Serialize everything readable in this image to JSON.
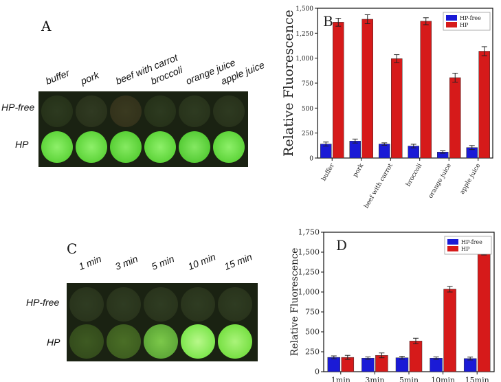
{
  "panels": {
    "a": {
      "letter": "A",
      "columns": [
        "buffer",
        "pork",
        "beef with carrot",
        "broccoli",
        "orange juice",
        "apple juice"
      ],
      "rows": [
        "HP-free",
        "HP"
      ]
    },
    "c": {
      "letter": "C",
      "columns": [
        "1 min",
        "3 min",
        "5 min",
        "10 min",
        "15 min"
      ],
      "rows": [
        "HP-free",
        "HP"
      ]
    }
  },
  "chart_data": [
    {
      "type": "bar",
      "panel_label": "B",
      "categories": [
        "buffer",
        "pork",
        "beef with carrot",
        "broccoli",
        "orange juice",
        "apple juice"
      ],
      "series": [
        {
          "name": "HP-free",
          "values": [
            140,
            170,
            140,
            120,
            60,
            105
          ],
          "errors": [
            20,
            20,
            12,
            18,
            12,
            20
          ],
          "color": "#1a1ad6"
        },
        {
          "name": "HP",
          "values": [
            1360,
            1390,
            995,
            1370,
            805,
            1070
          ],
          "errors": [
            40,
            45,
            40,
            35,
            45,
            45
          ],
          "color": "#d61a1a"
        }
      ],
      "ylabel": "Relative Fluorescence",
      "ylim": [
        0,
        1500
      ],
      "yticks": [
        0,
        250,
        500,
        750,
        1000,
        1250,
        1500
      ],
      "legend": "top-right"
    },
    {
      "type": "bar",
      "panel_label": "D",
      "categories": [
        "1min",
        "3min",
        "5min",
        "10min",
        "15min"
      ],
      "series": [
        {
          "name": "HP-free",
          "values": [
            180,
            170,
            175,
            170,
            165
          ],
          "errors": [
            18,
            15,
            18,
            15,
            18
          ],
          "color": "#1a1ad6"
        },
        {
          "name": "HP",
          "values": [
            180,
            205,
            385,
            1035,
            1500
          ],
          "errors": [
            25,
            30,
            35,
            35,
            35
          ],
          "color": "#d61a1a"
        }
      ],
      "ylabel": "Relative Fluorescence",
      "ylim": [
        0,
        1750
      ],
      "yticks": [
        0,
        250,
        500,
        750,
        1000,
        1250,
        1500,
        1750
      ],
      "legend": "top-right"
    }
  ]
}
